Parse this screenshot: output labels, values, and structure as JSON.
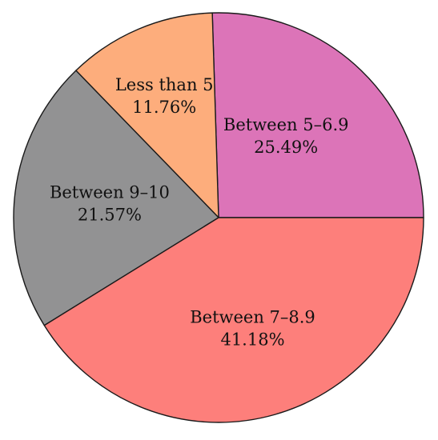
{
  "chart_data": {
    "type": "pie",
    "title": "",
    "slices": [
      {
        "label": "Between 5–6.9",
        "value": 25.49,
        "value_label": "25.49%",
        "color": "#dc74b8"
      },
      {
        "label": "Less than 5",
        "value": 11.76,
        "value_label": "11.76%",
        "color": "#fdad7c"
      },
      {
        "label": "Between 9–10",
        "value": 21.57,
        "value_label": "21.57%",
        "color": "#929293"
      },
      {
        "label": "Between 7–8.9",
        "value": 41.18,
        "value_label": "41.18%",
        "color": "#fd7f7b"
      }
    ],
    "start_angle_deg": 0,
    "direction": "clockwise",
    "legend": "none"
  }
}
